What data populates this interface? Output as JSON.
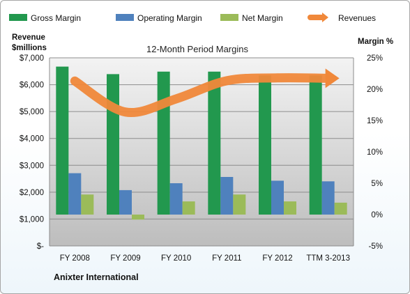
{
  "chart_data": {
    "type": "bar",
    "title": "12-Month Period Margins",
    "left_axis_title_line1": "Revenue",
    "left_axis_title_line2": "$millions",
    "right_axis_title": "Margin %",
    "company": "Anixter International",
    "categories": [
      "FY 2008",
      "FY 2009",
      "FY 2010",
      "FY 2011",
      "FY 2012",
      "TTM 3-2013"
    ],
    "left_ticks": [
      "$-",
      "$1,000",
      "$2,000",
      "$3,000",
      "$4,000",
      "$5,000",
      "$6,000",
      "$7,000"
    ],
    "right_ticks": [
      "-5%",
      "0%",
      "5%",
      "10%",
      "15%",
      "20%",
      "25%"
    ],
    "ylim_left": [
      0,
      7000
    ],
    "ylim_right": [
      -5,
      25
    ],
    "grid": true,
    "legend_position": "top",
    "series": [
      {
        "name": "Gross Margin",
        "axis": "right",
        "color": "#22984e",
        "values": [
          23.6,
          22.4,
          22.8,
          22.8,
          22.2,
          22.2
        ]
      },
      {
        "name": "Operating Margin",
        "axis": "right",
        "color": "#4f81bd",
        "values": [
          6.6,
          3.9,
          5.0,
          6.0,
          5.4,
          5.3
        ]
      },
      {
        "name": "Net Margin",
        "axis": "right",
        "color": "#9bbb59",
        "values": [
          3.2,
          -0.8,
          2.1,
          3.2,
          2.1,
          1.9
        ]
      },
      {
        "name": "Revenues",
        "axis": "left",
        "color": "#f0883a",
        "type": "line",
        "values": [
          6137,
          4982,
          5473,
          6147,
          6254,
          6240
        ]
      }
    ]
  }
}
